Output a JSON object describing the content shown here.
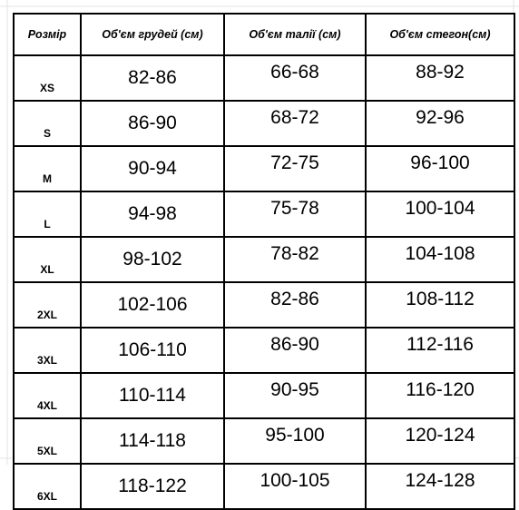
{
  "table": {
    "headers": [
      "Розмір",
      "Об'єм грудей (см)",
      "Об'єм талії (см)",
      "Об'єм стегон(см)"
    ],
    "rows": [
      {
        "size": "XS",
        "chest": "82-86",
        "waist": "66-68",
        "hips": "88-92"
      },
      {
        "size": "S",
        "chest": "86-90",
        "waist": "68-72",
        "hips": "92-96"
      },
      {
        "size": "M",
        "chest": "90-94",
        "waist": "72-75",
        "hips": "96-100"
      },
      {
        "size": "L",
        "chest": "94-98",
        "waist": "75-78",
        "hips": "100-104"
      },
      {
        "size": "XL",
        "chest": "98-102",
        "waist": "78-82",
        "hips": "104-108"
      },
      {
        "size": "2XL",
        "chest": "102-106",
        "waist": "82-86",
        "hips": "108-112"
      },
      {
        "size": "3XL",
        "chest": "106-110",
        "waist": "86-90",
        "hips": "112-116"
      },
      {
        "size": "4XL",
        "chest": "110-114",
        "waist": "90-95",
        "hips": "116-120"
      },
      {
        "size": "5XL",
        "chest": "114-118",
        "waist": "95-100",
        "hips": "120-124"
      },
      {
        "size": "6XL",
        "chest": "118-122",
        "waist": "100-105",
        "hips": "124-128"
      }
    ]
  },
  "colors": {
    "border": "#000000",
    "text": "#000000",
    "background": "#ffffff",
    "gridline": "#d9d9d9"
  }
}
